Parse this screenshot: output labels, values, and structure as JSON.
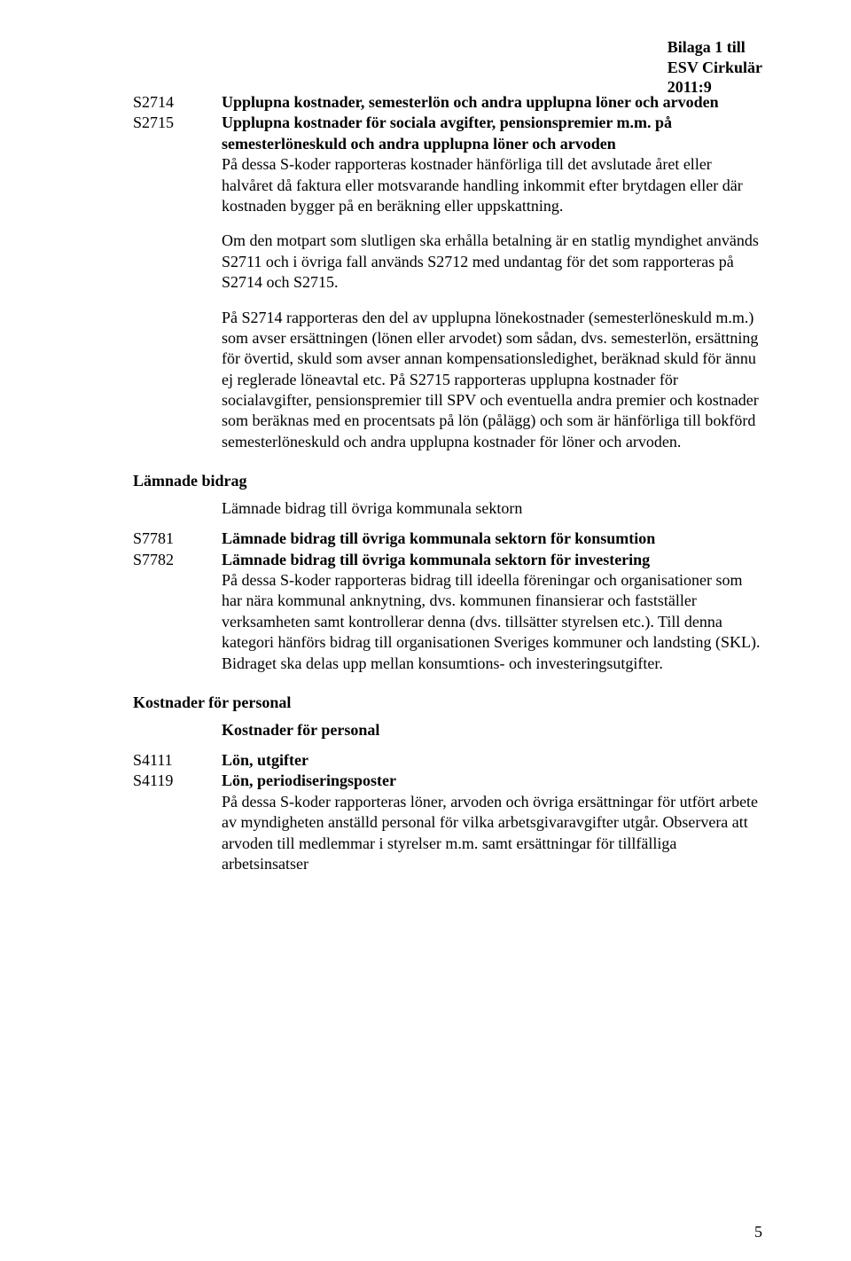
{
  "header": {
    "line1": "Bilaga 1 till",
    "line2": "ESV Cirkulär",
    "line3": "2011:9"
  },
  "entries1": {
    "codeA": "S2714",
    "descA_bold": "Upplupna kostnader, semesterlön och andra upplupna löner och arvoden",
    "codeB": "S2715",
    "descB_bold": "Upplupna kostnader för sociala avgifter, pensionspremier m.m. på semesterlöneskuld och andra upplupna löner och arvoden",
    "body1": "På dessa S-koder rapporteras kostnader hänförliga till det avslutade året eller halvåret då faktura eller motsvarande handling inkommit efter brytdagen eller där kostnaden bygger på en beräkning eller uppskattning.",
    "body2": "Om den motpart som slutligen ska erhålla betalning är en statlig myndighet används S2711 och i övriga fall används S2712 med undantag för det som rapporteras på S2714 och S2715.",
    "body3": "På S2714 rapporteras den del av upplupna lönekostnader (semesterlöneskuld m.m.) som avser ersättningen (lönen eller arvodet) som sådan, dvs. semesterlön, ersättning för övertid, skuld som avser annan kompensationsledighet, beräknad skuld för ännu ej reglerade löneavtal etc. På S2715 rapporteras upplupna kostnader för socialavgifter, pensionspremier till SPV och eventuella andra premier och kostnader som beräknas med en procentsats på lön (pålägg) och som är hänförliga till bokförd semesterlöneskuld och andra upplupna kostnader för löner och arvoden."
  },
  "sectA": {
    "heading": "Lämnade bidrag",
    "subheading": "Lämnade bidrag till övriga kommunala sektorn",
    "codeA": "S7781",
    "descA_bold": "Lämnade bidrag till övriga kommunala sektorn för konsumtion",
    "codeB": "S7782",
    "descB_bold": "Lämnade bidrag till övriga kommunala sektorn för investering",
    "body": "På dessa S-koder rapporteras bidrag till ideella föreningar och organisationer som har nära kommunal anknytning, dvs. kommunen finansierar och fastställer verksamheten samt kontrollerar denna (dvs. tillsätter styrelsen etc.). Till denna kategori hänförs bidrag till organisationen Sveriges kommuner och landsting (SKL). Bidraget ska delas upp mellan konsumtions- och investeringsutgifter."
  },
  "sectB": {
    "heading": "Kostnader för personal",
    "subheading": "Kostnader för personal",
    "codeA": "S4111",
    "descA_bold": "Lön, utgifter",
    "codeB": "S4119",
    "descB_bold": "Lön, periodiseringsposter",
    "body": "På dessa S-koder rapporteras löner, arvoden och övriga ersättningar för utfört arbete av myndigheten anställd personal för vilka arbetsgivaravgifter utgår. Observera att arvoden till medlemmar i styrelser m.m. samt ersättningar för tillfälliga arbetsinsatser"
  },
  "pageNumber": "5"
}
